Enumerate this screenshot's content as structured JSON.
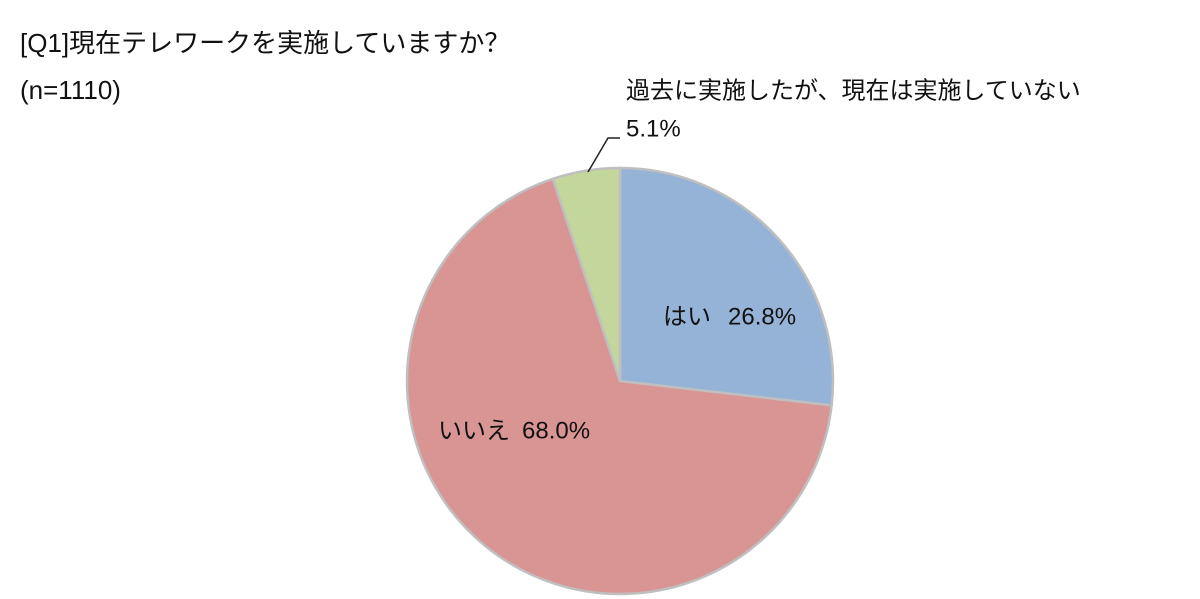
{
  "chart_data": {
    "type": "pie",
    "title": "[Q1]現在テレワークを実施していますか？",
    "subtitle": "(n=1110)",
    "categories": [
      "はい",
      "いいえ",
      "過去に実施したが、現在は実施していない"
    ],
    "values": [
      26.8,
      68.0,
      5.1
    ],
    "value_labels": [
      "26.8%",
      "68.0%",
      "5.1%"
    ],
    "colors": [
      "#95b3d7",
      "#d99594",
      "#c3d69b"
    ]
  }
}
